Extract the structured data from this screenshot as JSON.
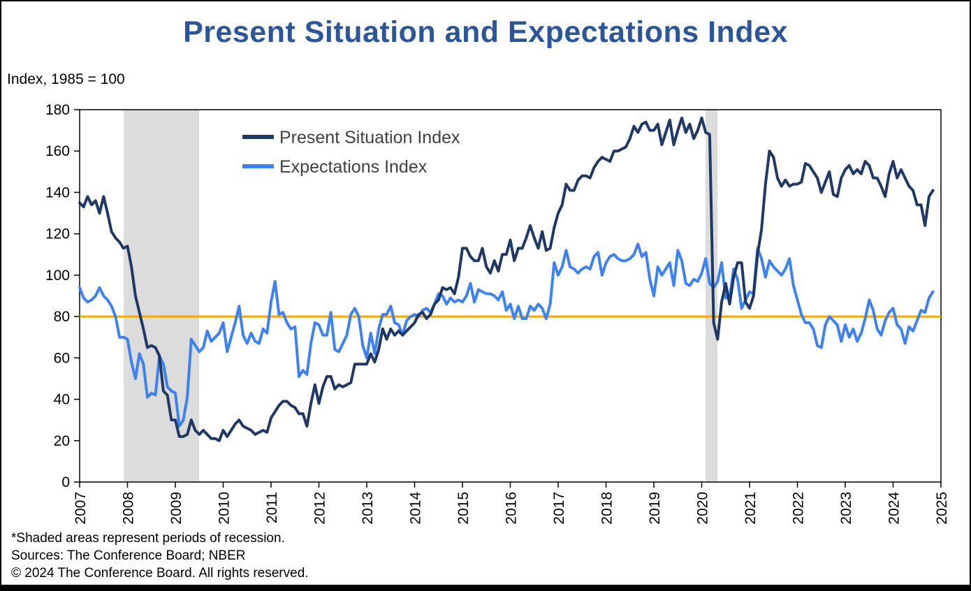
{
  "title": "Present Situation and Expectations Index",
  "subtitle": "Index, 1985 = 100",
  "footnotes": {
    "line1": "*Shaded areas represent periods of recession.",
    "line2": "Sources: The Conference Board;  NBER",
    "line3": "© 2024 The Conference Board. All rights reserved."
  },
  "colors": {
    "title": "#2D5699",
    "present": "#1F3864",
    "expectations": "#3E82F0",
    "threshold": "#FFA500",
    "recession": "#DCDCDC",
    "axis": "#000000",
    "legend_text": "#404040"
  },
  "chart_data": {
    "type": "line",
    "title": "Present Situation and Expectations Index",
    "subtitle": "Index, 1985 = 100",
    "xlabel": "",
    "ylabel": "Index, 1985 = 100",
    "xlim": [
      2007,
      2025
    ],
    "ylim": [
      0,
      180
    ],
    "ytick_step": 20,
    "xticks": [
      2007,
      2008,
      2009,
      2010,
      2011,
      2012,
      2013,
      2014,
      2015,
      2016,
      2017,
      2018,
      2019,
      2020,
      2021,
      2022,
      2023,
      2024,
      2025
    ],
    "grid": false,
    "legend_position": "top-left-inside",
    "threshold_line": {
      "y": 80,
      "color": "#FFA500"
    },
    "recession_bands": [
      [
        2007.92,
        2009.5
      ],
      [
        2020.08,
        2020.33
      ]
    ],
    "x_start_year": 2007,
    "x_frequency": "monthly",
    "legend": [
      {
        "name": "Present Situation Index",
        "color": "#1F3864"
      },
      {
        "name": "Expectations Index",
        "color": "#3E82F0"
      }
    ],
    "series": [
      {
        "id": "present-situation",
        "name": "Present Situation Index",
        "color": "#1F3864",
        "values": [
          135,
          133,
          138,
          134,
          136,
          130,
          138,
          130,
          121,
          118,
          116,
          113,
          114,
          104,
          90,
          82,
          74,
          65,
          66,
          65,
          61,
          44,
          42,
          30,
          30,
          22,
          22,
          23,
          30,
          25,
          23,
          25,
          23,
          21,
          21,
          20,
          25,
          22,
          25,
          28,
          30,
          27,
          26,
          25,
          23,
          24,
          25,
          24,
          31,
          34,
          37,
          39,
          39,
          37,
          36,
          33,
          33,
          27,
          38,
          47,
          38,
          46,
          51,
          51,
          45,
          47,
          46,
          47,
          48,
          57,
          57,
          57,
          57,
          62,
          58,
          64,
          74,
          69,
          74,
          71,
          73,
          71,
          73,
          75,
          77,
          81,
          82,
          79,
          81,
          86,
          88,
          94,
          93,
          94,
          91,
          99,
          113,
          113,
          109,
          107,
          107,
          113,
          104,
          101,
          107,
          102,
          110,
          110,
          117,
          107,
          113,
          113,
          118,
          124,
          118,
          113,
          121,
          112,
          113,
          123,
          130,
          134,
          144,
          141,
          141,
          146,
          148,
          148,
          147,
          152,
          155,
          157,
          156,
          155,
          160,
          160,
          161,
          162,
          166,
          172,
          169,
          173,
          174,
          170,
          170,
          173,
          163,
          169,
          175,
          163,
          170,
          176,
          169,
          173,
          166,
          170,
          176,
          169,
          168,
          77,
          69,
          87,
          96,
          86,
          99,
          106,
          106,
          87,
          84,
          90,
          110,
          122,
          144,
          160,
          157,
          147,
          143,
          146,
          143,
          144,
          144,
          145,
          154,
          153,
          150,
          147,
          140,
          145,
          150,
          139,
          138,
          147,
          151,
          153,
          149,
          151,
          149,
          155,
          153,
          147,
          147,
          143,
          138,
          149,
          155,
          147,
          151,
          147,
          143,
          141,
          134,
          134,
          124,
          138,
          141
        ]
      },
      {
        "id": "expectations",
        "name": "Expectations Index",
        "color": "#3E82F0",
        "values": [
          94,
          89,
          87,
          88,
          90,
          94,
          90,
          88,
          85,
          80,
          70,
          70,
          69,
          58,
          50,
          62,
          57,
          41,
          43,
          42,
          61,
          57,
          46,
          44,
          43,
          27,
          30,
          41,
          69,
          66,
          63,
          65,
          73,
          68,
          70,
          72,
          77,
          63,
          70,
          77,
          85,
          71,
          67,
          72,
          68,
          67,
          74,
          72,
          87,
          97,
          81,
          82,
          77,
          74,
          75,
          51,
          54,
          52,
          67,
          77,
          76,
          71,
          71,
          82,
          64,
          63,
          67,
          71,
          81,
          84,
          80,
          66,
          60,
          72,
          62,
          74,
          81,
          81,
          85,
          77,
          76,
          71,
          78,
          80,
          81,
          80,
          83,
          84,
          82,
          86,
          91,
          90,
          86,
          89,
          87,
          88,
          87,
          90,
          96,
          87,
          93,
          92,
          91,
          91,
          90,
          88,
          92,
          83,
          86,
          79,
          85,
          79,
          79,
          85,
          83,
          86,
          84,
          79,
          86,
          106,
          100,
          104,
          112,
          104,
          103,
          101,
          103,
          104,
          103,
          109,
          111,
          100,
          106,
          109,
          110,
          108,
          107,
          107,
          108,
          110,
          115,
          109,
          111,
          98,
          90,
          104,
          100,
          103,
          106,
          95,
          112,
          107,
          96,
          95,
          98,
          97,
          101,
          108,
          96,
          94,
          97,
          106,
          89,
          89,
          103,
          98,
          84,
          88,
          92,
          91,
          113,
          108,
          99,
          107,
          104,
          102,
          100,
          103,
          108,
          95,
          88,
          81,
          77,
          77,
          74,
          66,
          65,
          76,
          80,
          78,
          76,
          68,
          76,
          70,
          74,
          68,
          72,
          79,
          88,
          83,
          74,
          71,
          78,
          82,
          84,
          76,
          74,
          67,
          75,
          73,
          78,
          83,
          82,
          89,
          92
        ]
      }
    ]
  }
}
